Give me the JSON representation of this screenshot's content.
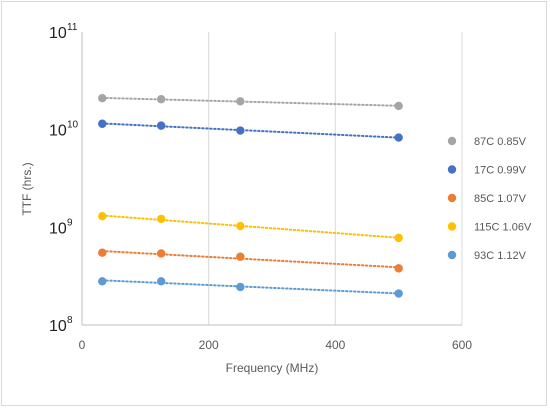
{
  "chart_data": {
    "type": "scatter",
    "title": "",
    "xlabel": "Frequency (MHz)",
    "ylabel": "TTF (hrs.)",
    "xlim": [
      0,
      600
    ],
    "ylim": [
      100000000,
      100000000000
    ],
    "y_scale": "log",
    "x_ticks": [
      0,
      200,
      400,
      600
    ],
    "y_ticks": [
      {
        "value": 100000000,
        "base": "10",
        "exp": "8"
      },
      {
        "value": 1000000000,
        "base": "10",
        "exp": "9"
      },
      {
        "value": 10000000000,
        "base": "10",
        "exp": "10"
      },
      {
        "value": 100000000000,
        "base": "10",
        "exp": "11"
      }
    ],
    "grid": "vertical",
    "trendlines": "dotted linear",
    "legend_position": "right",
    "x": [
      32,
      125,
      250,
      500
    ],
    "series": [
      {
        "name": "87C 0.85V",
        "color": "#a5a5a5",
        "values": [
          21000000000,
          20500000000,
          19500000000,
          17500000000
        ]
      },
      {
        "name": "17C 0.99V",
        "color": "#4472c4",
        "values": [
          11500000000,
          11000000000,
          9800000000,
          8300000000
        ]
      },
      {
        "name": "85C 1.07V",
        "color": "#ed7d31",
        "values": [
          550000000,
          540000000,
          500000000,
          380000000
        ]
      },
      {
        "name": "115C 1.06V",
        "color": "#ffc000",
        "values": [
          1300000000,
          1220000000,
          1030000000,
          780000000
        ]
      },
      {
        "name": "93C 1.12V",
        "color": "#5b9bd5",
        "values": [
          280000000,
          280000000,
          245000000,
          210000000
        ]
      }
    ]
  }
}
